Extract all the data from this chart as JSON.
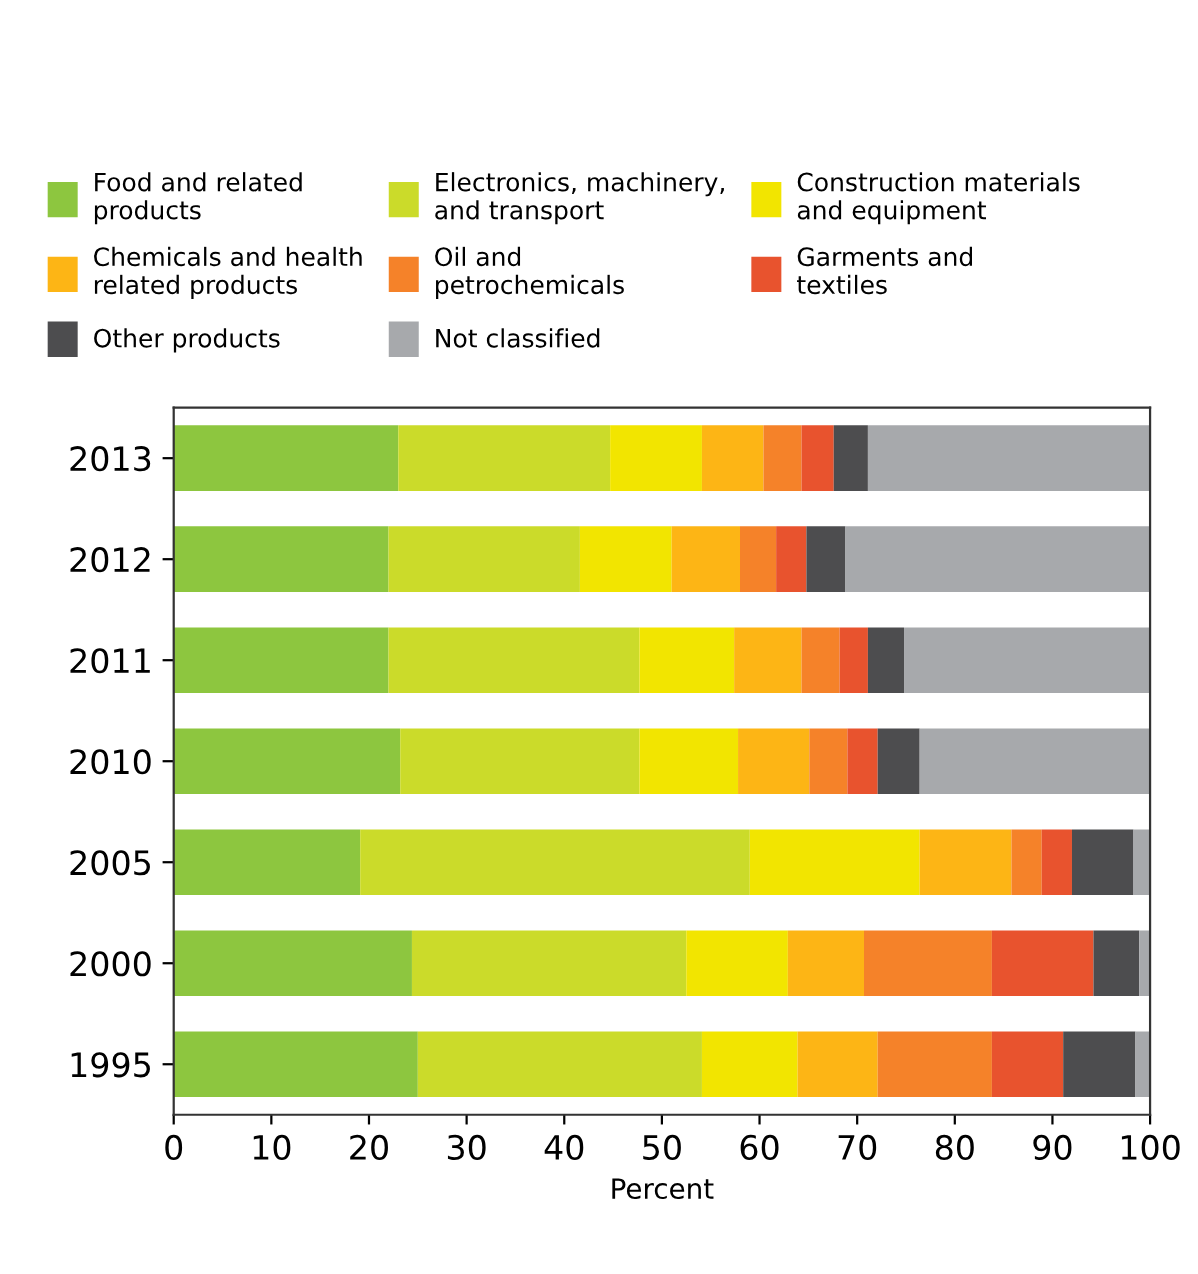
{
  "chart_data": {
    "type": "bar",
    "orientation": "horizontal",
    "stacked": true,
    "xlabel": "Percent",
    "categories": [
      "2013",
      "2012",
      "2011",
      "2010",
      "2005",
      "2000",
      "1995"
    ],
    "series": [
      {
        "name": "Food and related products",
        "color": "#8dc63f",
        "values": [
          23.0,
          22.0,
          22.0,
          23.2,
          19.1,
          24.4,
          25.0
        ]
      },
      {
        "name": "Electronics, machinery, and transport",
        "color": "#cbdb2a",
        "values": [
          21.7,
          19.6,
          25.7,
          24.5,
          39.9,
          28.1,
          29.1
        ]
      },
      {
        "name": "Construction materials and equipment",
        "color": "#f2e500",
        "values": [
          9.4,
          9.4,
          9.7,
          10.1,
          17.4,
          10.4,
          9.8
        ]
      },
      {
        "name": "Chemicals and health related products",
        "color": "#fdb515",
        "values": [
          6.3,
          7.0,
          6.9,
          7.3,
          9.4,
          7.8,
          8.2
        ]
      },
      {
        "name": "Oil and petrochemicals",
        "color": "#f58229",
        "values": [
          3.9,
          3.7,
          3.9,
          3.9,
          3.1,
          13.1,
          11.7
        ]
      },
      {
        "name": "Garments and textiles",
        "color": "#e8532e",
        "values": [
          3.3,
          3.1,
          2.9,
          3.1,
          3.1,
          10.4,
          7.3
        ]
      },
      {
        "name": "Other products",
        "color": "#4d4d4f",
        "values": [
          3.5,
          4.0,
          3.7,
          4.3,
          6.3,
          4.7,
          7.4
        ]
      },
      {
        "name": "Not classified",
        "color": "#a7a9ac",
        "values": [
          28.9,
          31.2,
          25.2,
          23.6,
          1.7,
          1.1,
          1.5
        ]
      }
    ],
    "xlim": [
      0,
      100
    ],
    "xticks": [
      0,
      10,
      20,
      30,
      40,
      50,
      60,
      70,
      80,
      90,
      100
    ],
    "legend": "top",
    "grid": false
  }
}
